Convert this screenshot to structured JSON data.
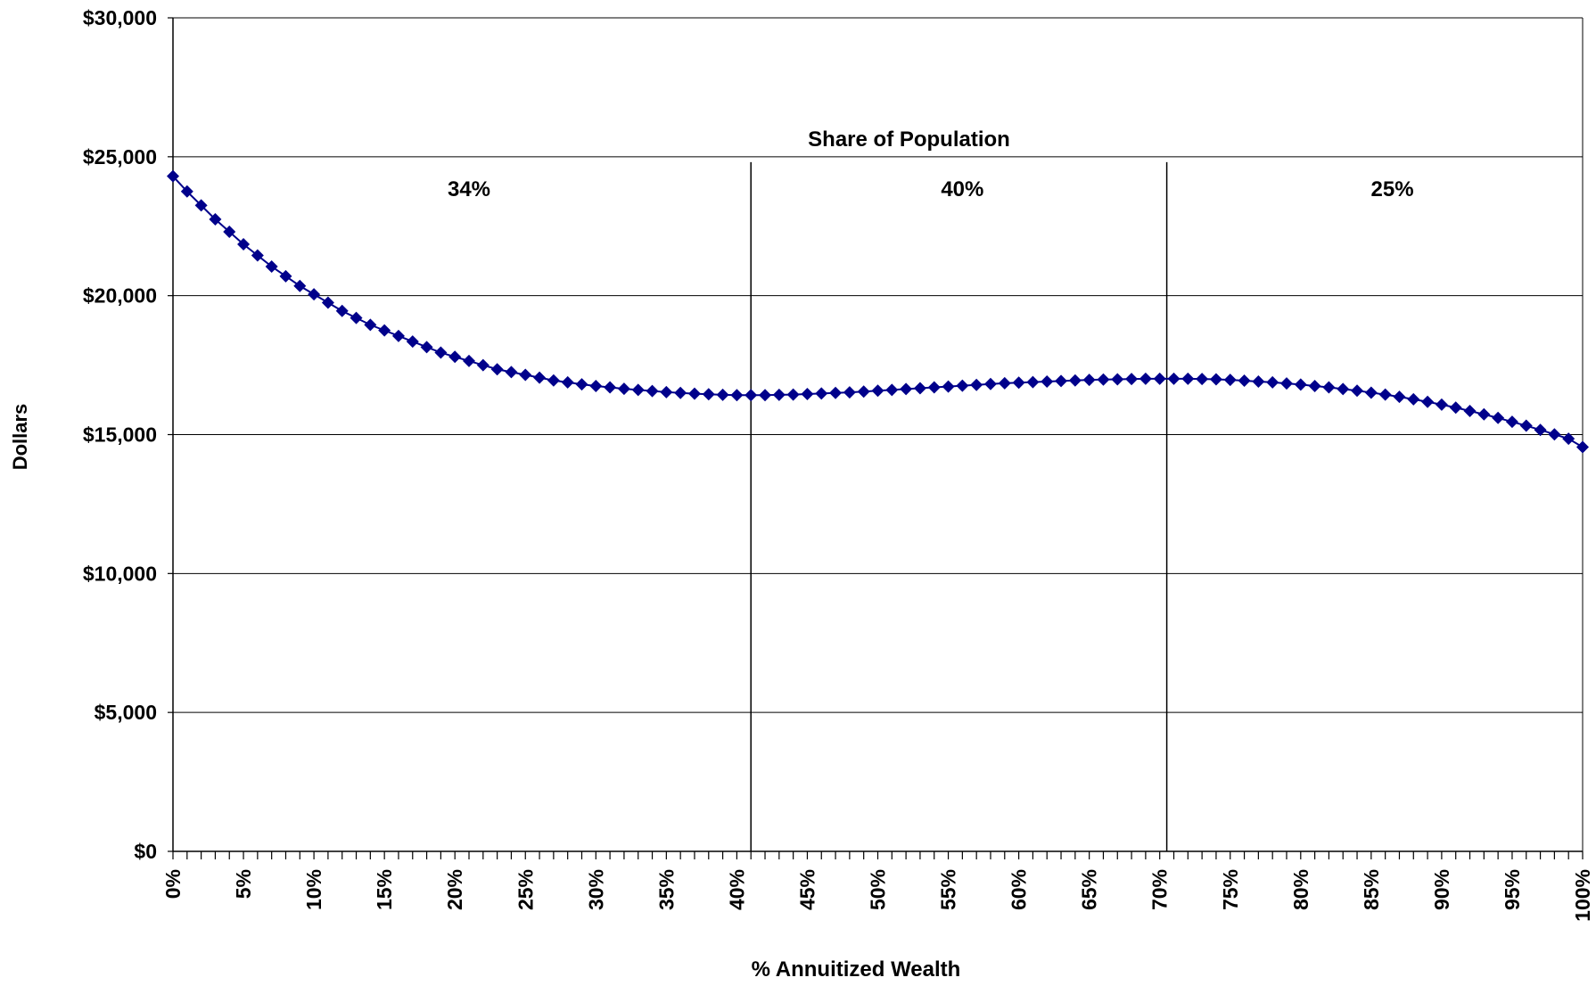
{
  "chart_data": {
    "type": "line",
    "title": "",
    "xlabel": "% Annuitized Wealth",
    "ylabel": "Dollars",
    "xlim": [
      0,
      100
    ],
    "ylim": [
      0,
      30000
    ],
    "grid": true,
    "legend": "none",
    "y_ticks": [
      0,
      5000,
      10000,
      15000,
      20000,
      25000,
      30000
    ],
    "y_tick_labels": [
      "$0",
      "$5,000",
      "$10,000",
      "$15,000",
      "$20,000",
      "$25,000",
      "$30,000"
    ],
    "x_ticks": [
      0,
      5,
      10,
      15,
      20,
      25,
      30,
      35,
      40,
      45,
      50,
      55,
      60,
      65,
      70,
      75,
      80,
      85,
      90,
      95,
      100
    ],
    "x_tick_labels": [
      "0%",
      "5%",
      "10%",
      "15%",
      "20%",
      "25%",
      "30%",
      "35%",
      "40%",
      "45%",
      "50%",
      "55%",
      "60%",
      "65%",
      "70%",
      "75%",
      "80%",
      "85%",
      "90%",
      "95%",
      "100%"
    ],
    "marker": "diamond",
    "series_color": "#00008B",
    "series": [
      {
        "x": [
          0,
          1,
          2,
          3,
          4,
          5,
          6,
          7,
          8,
          9,
          10,
          11,
          12,
          13,
          14,
          15,
          16,
          17,
          18,
          19,
          20,
          21,
          22,
          23,
          24,
          25,
          26,
          27,
          28,
          29,
          30,
          31,
          32,
          33,
          34,
          35,
          36,
          37,
          38,
          39,
          40,
          41,
          42,
          43,
          44,
          45,
          46,
          47,
          48,
          49,
          50,
          51,
          52,
          53,
          54,
          55,
          56,
          57,
          58,
          59,
          60,
          61,
          62,
          63,
          64,
          65,
          66,
          67,
          68,
          69,
          70,
          71,
          72,
          73,
          74,
          75,
          76,
          77,
          78,
          79,
          80,
          81,
          82,
          83,
          84,
          85,
          86,
          87,
          88,
          89,
          90,
          91,
          92,
          93,
          94,
          95,
          96,
          97,
          98,
          99,
          100
        ],
        "values": [
          24300,
          23750,
          23250,
          22750,
          22300,
          21850,
          21450,
          21050,
          20700,
          20350,
          20050,
          19750,
          19450,
          19200,
          18950,
          18750,
          18550,
          18350,
          18150,
          17950,
          17800,
          17650,
          17500,
          17350,
          17250,
          17150,
          17050,
          16950,
          16880,
          16810,
          16750,
          16700,
          16650,
          16610,
          16570,
          16530,
          16500,
          16470,
          16450,
          16430,
          16420,
          16420,
          16420,
          16430,
          16440,
          16460,
          16480,
          16500,
          16520,
          16550,
          16580,
          16610,
          16640,
          16670,
          16700,
          16730,
          16760,
          16790,
          16820,
          16850,
          16870,
          16890,
          16910,
          16930,
          16950,
          16970,
          16980,
          16990,
          17000,
          17010,
          17010,
          17010,
          17010,
          17000,
          16990,
          16970,
          16940,
          16910,
          16880,
          16840,
          16800,
          16750,
          16700,
          16640,
          16580,
          16510,
          16440,
          16360,
          16270,
          16180,
          16080,
          15970,
          15850,
          15730,
          15600,
          15460,
          15320,
          15170,
          15010,
          14850,
          14550
        ]
      }
    ],
    "annotations": {
      "header": "Share of Population",
      "dividers_at": [
        41,
        70.5
      ],
      "segments": [
        {
          "label": "34%",
          "x": 21
        },
        {
          "label": "40%",
          "x": 56
        },
        {
          "label": "25%",
          "x": 86.5
        }
      ]
    }
  }
}
